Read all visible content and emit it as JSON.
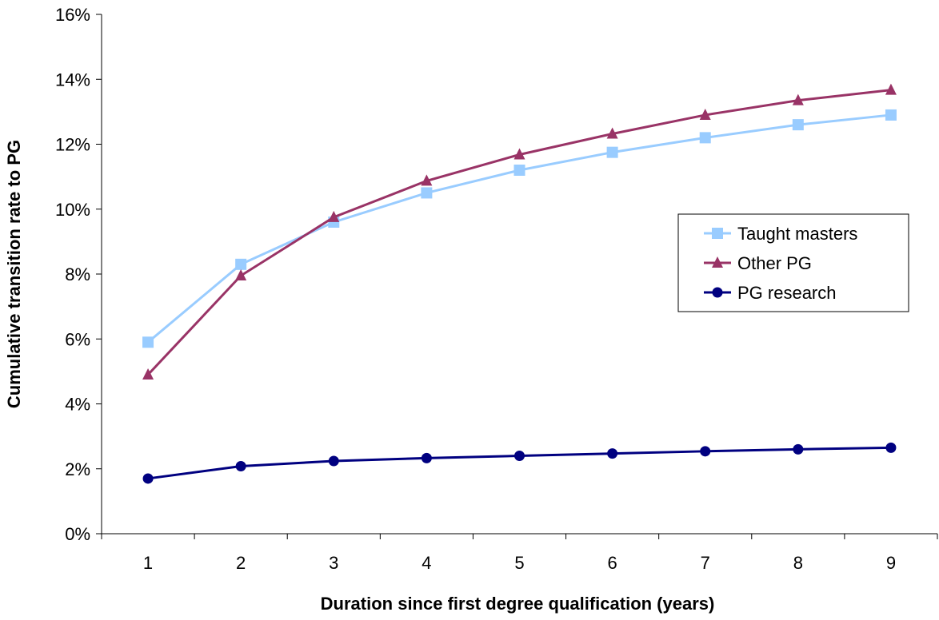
{
  "chart_data": {
    "type": "line",
    "title": "",
    "xlabel": "Duration since first degree qualification (years)",
    "ylabel": "Cumulative transition rate to PG",
    "x": [
      1,
      2,
      3,
      4,
      5,
      6,
      7,
      8,
      9
    ],
    "ylim": [
      0,
      16
    ],
    "yticks": [
      0,
      2,
      4,
      6,
      8,
      10,
      12,
      14,
      16
    ],
    "ytick_labels": [
      "0%",
      "2%",
      "4%",
      "6%",
      "8%",
      "10%",
      "12%",
      "14%",
      "16%"
    ],
    "grid": false,
    "legend_position": "right",
    "series": [
      {
        "name": "Taught masters",
        "color": "#99ccff",
        "marker": "square",
        "values": [
          5.9,
          8.3,
          9.6,
          10.5,
          11.2,
          11.75,
          12.2,
          12.6,
          12.9
        ]
      },
      {
        "name": "Other PG",
        "color": "#993366",
        "marker": "triangle",
        "values": [
          4.9,
          7.95,
          9.75,
          10.87,
          11.68,
          12.32,
          12.9,
          13.35,
          13.67
        ]
      },
      {
        "name": "PG research",
        "color": "#000080",
        "marker": "circle",
        "values": [
          1.7,
          2.08,
          2.24,
          2.33,
          2.4,
          2.47,
          2.54,
          2.6,
          2.65
        ]
      }
    ]
  }
}
